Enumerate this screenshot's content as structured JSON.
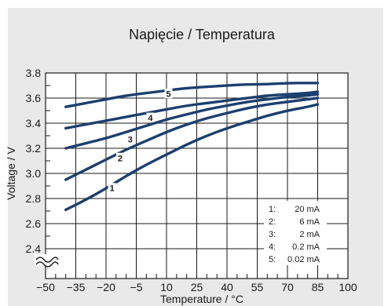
{
  "chart_data": {
    "type": "line",
    "title": "Napięcie / Temperatura",
    "xlabel": "Temperature / °C",
    "ylabel": "Voltage / V",
    "x_ticks": [
      "−50",
      "−35",
      "−20",
      "−5",
      "10",
      "25",
      "40",
      "55",
      "70",
      "85",
      "100"
    ],
    "y_ticks": [
      "2.4",
      "2.6",
      "2.8",
      "3.0",
      "3.2",
      "3.4",
      "3.6",
      "3.8"
    ],
    "xlim": [
      -50,
      100
    ],
    "ylim": [
      2.32,
      3.8
    ],
    "y_axis_break": true,
    "grid": true,
    "colors": {
      "background": "#e9e9e9",
      "plot_background": "#ffffff",
      "grid": "#1a1a1a",
      "series": "#1b3f6e"
    },
    "legend": {
      "placement": "bottom-right",
      "entries": [
        {
          "key": "1:",
          "value": "20 mA"
        },
        {
          "key": "2:",
          "value": "6 mA"
        },
        {
          "key": "3:",
          "value": "2 mA"
        },
        {
          "key": "4:",
          "value": "0.2 mA"
        },
        {
          "key": "5:",
          "value": "0.02 mA"
        }
      ]
    },
    "series": [
      {
        "name": "1",
        "label_at": [
          -17,
          2.88
        ],
        "x": [
          -40,
          -30,
          -20,
          -10,
          0,
          10,
          20,
          30,
          40,
          50,
          60,
          70,
          80,
          85
        ],
        "y": [
          2.71,
          2.79,
          2.88,
          2.98,
          3.07,
          3.15,
          3.23,
          3.3,
          3.36,
          3.41,
          3.46,
          3.5,
          3.53,
          3.55
        ]
      },
      {
        "name": "2",
        "label_at": [
          -13,
          3.12
        ],
        "x": [
          -40,
          -30,
          -20,
          -10,
          0,
          10,
          20,
          30,
          40,
          50,
          60,
          70,
          80,
          85
        ],
        "y": [
          2.95,
          3.03,
          3.11,
          3.19,
          3.26,
          3.33,
          3.39,
          3.44,
          3.48,
          3.52,
          3.55,
          3.57,
          3.59,
          3.6
        ]
      },
      {
        "name": "3",
        "label_at": [
          -8,
          3.27
        ],
        "x": [
          -40,
          -30,
          -20,
          -10,
          0,
          10,
          20,
          30,
          40,
          50,
          60,
          70,
          80,
          85
        ],
        "y": [
          3.2,
          3.24,
          3.28,
          3.33,
          3.38,
          3.43,
          3.47,
          3.51,
          3.54,
          3.57,
          3.59,
          3.61,
          3.62,
          3.63
        ]
      },
      {
        "name": "4",
        "label_at": [
          2,
          3.44
        ],
        "x": [
          -40,
          -30,
          -20,
          -10,
          0,
          10,
          20,
          30,
          40,
          50,
          60,
          70,
          80,
          85
        ],
        "y": [
          3.36,
          3.39,
          3.42,
          3.45,
          3.48,
          3.51,
          3.54,
          3.56,
          3.58,
          3.6,
          3.62,
          3.63,
          3.64,
          3.65
        ]
      },
      {
        "name": "5",
        "label_at": [
          11,
          3.63
        ],
        "x": [
          -40,
          -30,
          -20,
          -10,
          0,
          10,
          20,
          30,
          40,
          50,
          60,
          70,
          80,
          85
        ],
        "y": [
          3.53,
          3.56,
          3.59,
          3.62,
          3.64,
          3.66,
          3.68,
          3.69,
          3.7,
          3.71,
          3.71,
          3.72,
          3.72,
          3.72
        ]
      }
    ]
  }
}
